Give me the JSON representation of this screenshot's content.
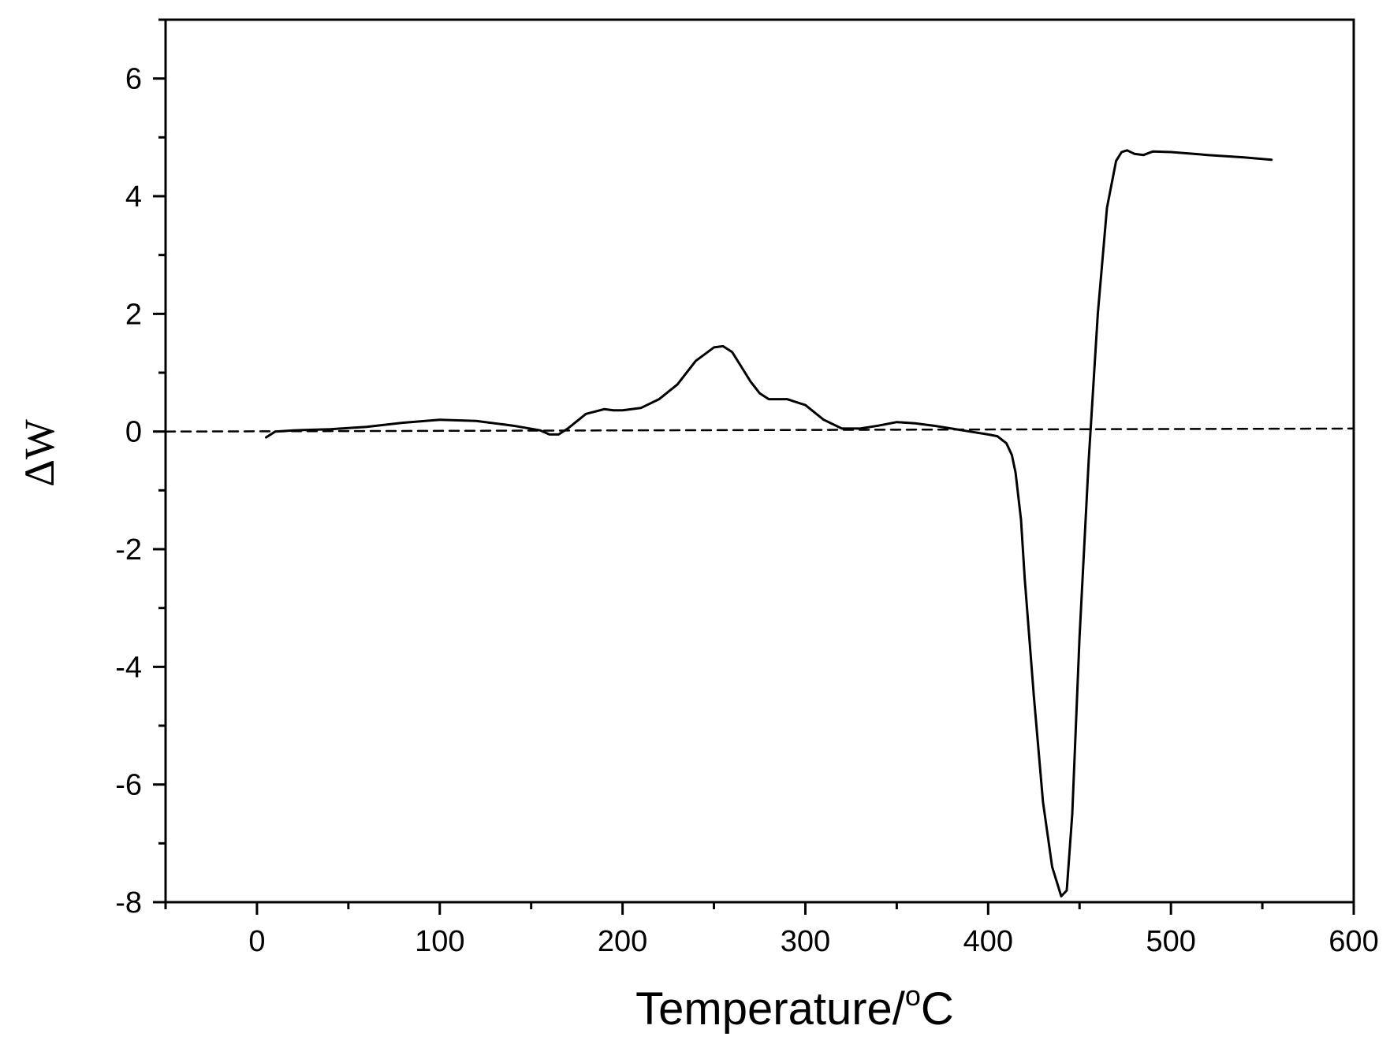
{
  "chart_data": {
    "type": "line",
    "title": "",
    "xlabel": "Temperature/",
    "xlabel_degree": "o",
    "xlabel_unit": "C",
    "ylabel": "ΔW",
    "xlim": [
      -50,
      600
    ],
    "ylim": [
      -8,
      7
    ],
    "xticks": [
      0,
      100,
      200,
      300,
      400,
      500,
      600
    ],
    "xtick_labels": [
      "0",
      "100",
      "200",
      "300",
      "400",
      "500",
      "600"
    ],
    "yticks": [
      -8,
      -6,
      -4,
      -2,
      0,
      2,
      4,
      6
    ],
    "ytick_labels": [
      "-8",
      "-6",
      "-4",
      "-2",
      "0",
      "2",
      "4",
      "6"
    ],
    "grid": false,
    "series": [
      {
        "style": "solid",
        "color": "#000000",
        "x": [
          5,
          10,
          20,
          40,
          60,
          80,
          100,
          120,
          140,
          155,
          160,
          165,
          170,
          180,
          190,
          195,
          200,
          210,
          220,
          230,
          240,
          250,
          255,
          260,
          265,
          270,
          275,
          280,
          290,
          300,
          310,
          320,
          330,
          340,
          350,
          360,
          370,
          380,
          390,
          400,
          405,
          410,
          413,
          415,
          418,
          420,
          425,
          430,
          435,
          440,
          443,
          446,
          450,
          455,
          460,
          465,
          470,
          473,
          476,
          480,
          485,
          490,
          500,
          520,
          540,
          555
        ],
        "y": [
          -0.1,
          0.0,
          0.02,
          0.04,
          0.08,
          0.15,
          0.2,
          0.18,
          0.1,
          0.02,
          -0.05,
          -0.05,
          0.05,
          0.3,
          0.38,
          0.36,
          0.36,
          0.4,
          0.55,
          0.8,
          1.2,
          1.43,
          1.45,
          1.35,
          1.1,
          0.85,
          0.65,
          0.55,
          0.55,
          0.45,
          0.2,
          0.05,
          0.05,
          0.1,
          0.16,
          0.14,
          0.1,
          0.05,
          0.0,
          -0.05,
          -0.08,
          -0.2,
          -0.4,
          -0.7,
          -1.5,
          -2.5,
          -4.5,
          -6.3,
          -7.4,
          -7.9,
          -7.8,
          -6.5,
          -3.5,
          -0.5,
          2.0,
          3.8,
          4.6,
          4.75,
          4.78,
          4.72,
          4.7,
          4.76,
          4.75,
          4.7,
          4.66,
          4.62
        ]
      },
      {
        "style": "dashed",
        "color": "#000000",
        "x": [
          -50,
          600
        ],
        "y": [
          0.0,
          0.05
        ]
      }
    ]
  }
}
